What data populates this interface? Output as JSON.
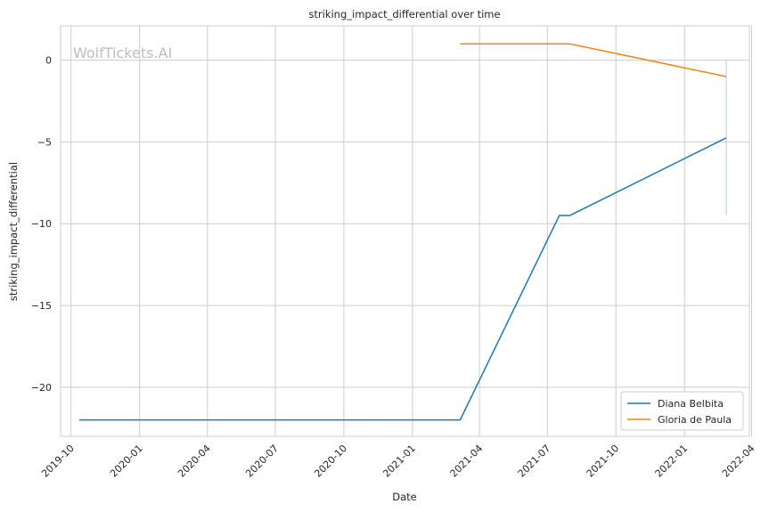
{
  "watermark": "WolfTickets.AI",
  "chart_data": {
    "type": "line",
    "title": "striking_impact_differential over time",
    "xlabel": "Date",
    "ylabel": "striking_impact_differential",
    "x_axis_type": "date",
    "xlim": [
      "2019-09-17",
      "2022-03-29"
    ],
    "ylim": [
      -23.0,
      2.1
    ],
    "x_ticks": [
      "2019-10",
      "2020-01",
      "2020-04",
      "2020-07",
      "2020-10",
      "2021-01",
      "2021-04",
      "2021-07",
      "2021-10",
      "2022-01",
      "2022-04"
    ],
    "y_ticks": [
      0,
      -5,
      -10,
      -15,
      -20
    ],
    "y_tick_labels": [
      "0",
      "−5",
      "−10",
      "−15",
      "−20"
    ],
    "grid": true,
    "legend_position": "lower right",
    "series": [
      {
        "name": "Diana Belbita",
        "color": "#1f77b4",
        "points": [
          {
            "x": "2019-10-12",
            "y": -22
          },
          {
            "x": "2021-03-06",
            "y": -22
          },
          {
            "x": "2021-07-17",
            "y": -9.5
          },
          {
            "x": "2021-07-31",
            "y": -9.5
          },
          {
            "x": "2022-02-26",
            "y": -4.75
          }
        ]
      },
      {
        "name": "Gloria de Paula",
        "color": "#ff7f0e",
        "points": [
          {
            "x": "2021-03-06",
            "y": 1
          },
          {
            "x": "2021-07-31",
            "y": 1
          },
          {
            "x": "2022-02-26",
            "y": -1
          }
        ]
      }
    ],
    "vertical_bars": [
      {
        "x": "2022-02-26",
        "y_from": 0,
        "y_to": -9.5,
        "color": "#a6cee3"
      }
    ]
  }
}
